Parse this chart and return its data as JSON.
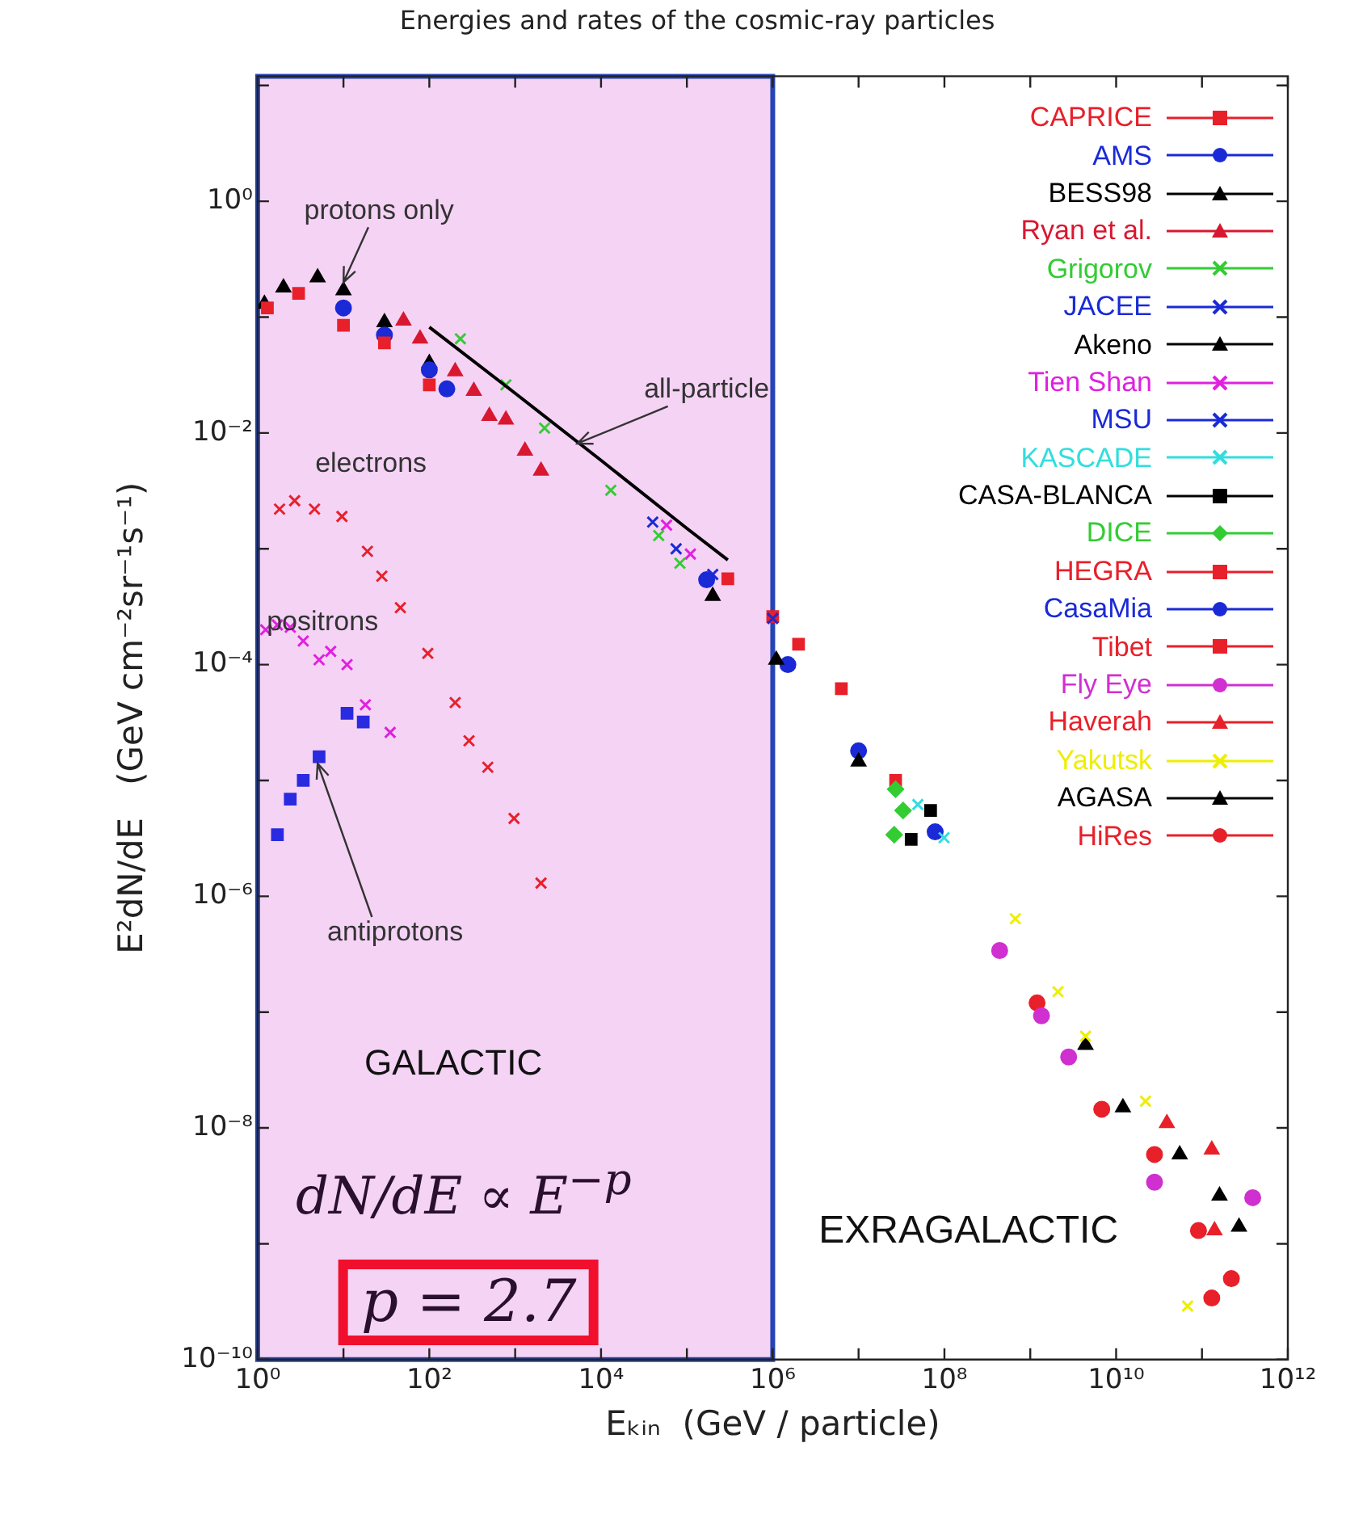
{
  "chart_data": {
    "type": "scatter",
    "title": "Energies and rates of the cosmic-ray particles",
    "xlabel": "Eₖᵢₙ  (GeV / particle)",
    "ylabel": "E²dN/dE   (GeV cm⁻²sr⁻¹s⁻¹)",
    "log": "xy",
    "grid": false,
    "legend": "top right",
    "xlim": [
      1,
      1000000000000
    ],
    "ylim": [
      1e-10,
      12
    ],
    "xticks": [
      {
        "value": 1,
        "label": "10⁰"
      },
      {
        "value": 10,
        "label": null
      },
      {
        "value": 100,
        "label": "10²"
      },
      {
        "value": 1000,
        "label": null
      },
      {
        "value": 10000,
        "label": "10⁴"
      },
      {
        "value": 100000,
        "label": null
      },
      {
        "value": 1000000,
        "label": "10⁶"
      },
      {
        "value": 10000000,
        "label": null
      },
      {
        "value": 100000000,
        "label": "10⁸"
      },
      {
        "value": 1000000000,
        "label": null
      },
      {
        "value": 10000000000,
        "label": "10¹⁰"
      },
      {
        "value": 100000000000,
        "label": null
      },
      {
        "value": 1000000000000,
        "label": "10¹²"
      }
    ],
    "yticks": [
      {
        "value": 1e-10,
        "label": "10⁻¹⁰"
      },
      {
        "value": 1e-09,
        "label": null
      },
      {
        "value": 1e-08,
        "label": "10⁻⁸"
      },
      {
        "value": 1e-07,
        "label": null
      },
      {
        "value": 1e-06,
        "label": "10⁻⁶"
      },
      {
        "value": 1e-05,
        "label": null
      },
      {
        "value": 0.0001,
        "label": "10⁻⁴"
      },
      {
        "value": 0.001,
        "label": null
      },
      {
        "value": 0.01,
        "label": "10⁻²"
      },
      {
        "value": 0.1,
        "label": null
      },
      {
        "value": 1,
        "label": "10⁰"
      },
      {
        "value": 10,
        "label": null
      }
    ],
    "bands": [
      {
        "axis": "x",
        "from": 1,
        "to": 1000000,
        "label": "GALACTIC",
        "color": "#f5d3f5"
      }
    ],
    "annotations": [
      {
        "text": "protons only",
        "x": 10,
        "y": 0.2
      },
      {
        "text": "all-particle",
        "x": 5300,
        "y": 0.0081
      },
      "electrons",
      "positrons",
      {
        "text": "antiprotons",
        "x": 5,
        "y": 1.4e-05
      },
      "EXRAGALACTIC",
      "dN/dE ∝ E$^{−p}$",
      "p = 2.7"
    ],
    "series": [
      {
        "type": "line",
        "color": "#000000",
        "marker": "none",
        "x": [
          100,
          1000,
          10000,
          100000,
          300000
        ],
        "values": [
          0.082,
          0.022,
          0.0058,
          0.0015,
          0.0008
        ]
      },
      {
        "name": "CAPRICE",
        "color": "#e8202a",
        "marker": "square",
        "x": [
          1.3,
          3,
          10,
          30,
          100
        ],
        "values": [
          0.12,
          0.16,
          0.085,
          0.06,
          0.026
        ]
      },
      {
        "name": "AMS",
        "color": "#1a2ad6",
        "marker": "circle",
        "x": [
          10,
          30,
          100,
          160
        ],
        "values": [
          0.12,
          0.07,
          0.035,
          0.024
        ]
      },
      {
        "name": "BESS98",
        "color": "#000000",
        "marker": "triangle",
        "x": [
          1.2,
          2,
          5,
          10,
          30,
          100
        ],
        "values": [
          0.13,
          0.18,
          0.22,
          0.17,
          0.09,
          0.04
        ]
      },
      {
        "name": "Ryan et al.",
        "color": "#d81830",
        "marker": "triangle",
        "x": [
          50,
          78,
          200,
          330,
          500,
          780,
          1300,
          2000
        ],
        "values": [
          0.093,
          0.065,
          0.034,
          0.023,
          0.014,
          0.013,
          0.007,
          0.0047
        ]
      },
      {
        "name": "Grigorov",
        "color": "#33cc33",
        "marker": "cross",
        "x": [
          230,
          780,
          2200,
          13000,
          47000,
          83000
        ],
        "values": [
          0.065,
          0.026,
          0.011,
          0.0032,
          0.0013,
          0.00075
        ]
      },
      {
        "name": "JACEE",
        "color": "#1a2ad6",
        "marker": "cross",
        "x": [
          40000,
          75000
        ],
        "values": [
          0.0017,
          0.001
        ]
      },
      {
        "name": "Akeno",
        "color": "#000000",
        "marker": "triangle",
        "x": [
          200000,
          1100000,
          10000000
        ],
        "values": [
          0.00039,
          0.00011,
          1.45e-05
        ]
      },
      {
        "name": "Tien Shan",
        "color": "#e020e0",
        "marker": "cross",
        "x": [
          58000,
          110000
        ],
        "values": [
          0.0016,
          0.0009
        ]
      },
      {
        "name": "MSU",
        "color": "#1a2ad6",
        "marker": "cross",
        "x": [
          200000,
          1000000
        ],
        "values": [
          0.0006,
          0.00025
        ]
      },
      {
        "name": "KASCADE",
        "color": "#33dddd",
        "marker": "cross",
        "x": [
          49000000,
          99000000
        ],
        "values": [
          6.2e-06,
          3.2e-06
        ]
      },
      {
        "name": "CASA-BLANCA",
        "color": "#000000",
        "marker": "square",
        "x": [
          41000000,
          69000000
        ],
        "values": [
          3.1e-06,
          5.5e-06
        ]
      },
      {
        "name": "DICE",
        "color": "#33cc33",
        "marker": "diamond",
        "x": [
          26000000,
          27000000,
          33000000
        ],
        "values": [
          3.4e-06,
          8.4e-06,
          5.5e-06
        ]
      },
      {
        "name": "HEGRA",
        "color": "#e8202a",
        "marker": "square",
        "x": [
          300000,
          1000000
        ],
        "values": [
          0.00055,
          0.00026
        ]
      },
      {
        "name": "CasaMia",
        "color": "#1a2ad6",
        "marker": "circle",
        "x": [
          170000,
          1500000,
          10000000,
          78000000
        ],
        "values": [
          0.00054,
          0.0001,
          1.8e-05,
          3.6e-06
        ]
      },
      {
        "name": "Tibet",
        "color": "#e8202a",
        "marker": "square",
        "x": [
          2000000,
          6300000,
          27000000
        ],
        "values": [
          0.00015,
          6.2e-05,
          1e-05
        ]
      },
      {
        "name": "Fly Eye",
        "color": "#d030d0",
        "marker": "circle",
        "x": [
          440000000,
          1350000000,
          2800000000,
          28000000000,
          390000000000
        ],
        "values": [
          3.4e-07,
          9.3e-08,
          4.1e-08,
          3.4e-09,
          2.5e-09
        ]
      },
      {
        "name": "Haverah",
        "color": "#e8202a",
        "marker": "triangle",
        "x": [
          39000000000,
          130000000000,
          140000000000
        ],
        "values": [
          1.1e-08,
          6.5e-09,
          1.3e-09
        ]
      },
      {
        "name": "Yakutsk",
        "color": "#eeee00",
        "marker": "cross",
        "x": [
          670000000,
          2100000000,
          4400000000,
          22000000000,
          68000000000
        ],
        "values": [
          6.4e-07,
          1.5e-07,
          6.2e-08,
          1.7e-08,
          2.9e-10
        ]
      },
      {
        "name": "AGASA",
        "color": "#000000",
        "marker": "triangle",
        "x": [
          4400000000,
          12000000000,
          55000000000,
          160000000000,
          270000000000
        ],
        "values": [
          5.2e-08,
          1.5e-08,
          5.9e-09,
          2.6e-09,
          1.4e-09
        ]
      },
      {
        "name": "HiRes",
        "color": "#e8202a",
        "marker": "circle",
        "x": [
          1200000000,
          6800000000,
          28000000000,
          91000000000,
          130000000000,
          220000000000
        ],
        "values": [
          1.2e-07,
          1.45e-08,
          5.9e-09,
          1.3e-09,
          3.4e-10,
          5e-10
        ]
      },
      {
        "type": "scatter",
        "color": "#e8202a",
        "marker": "cross",
        "x": [
          1.8,
          2.7,
          4.6,
          9.6,
          19,
          28,
          46,
          96,
          200,
          290,
          480,
          970,
          2000
        ],
        "values": [
          0.0022,
          0.0026,
          0.0022,
          0.0019,
          0.00095,
          0.00058,
          0.00031,
          0.000125,
          4.7e-05,
          2.2e-05,
          1.3e-05,
          4.7e-06,
          1.3e-06
        ]
      },
      {
        "type": "scatter",
        "color": "#e020e0",
        "marker": "cross",
        "x": [
          1.24,
          1.7,
          2.4,
          3.4,
          5.2,
          7.1,
          11,
          18,
          35
        ],
        "values": [
          0.0002,
          0.00022,
          0.00021,
          0.00016,
          0.00011,
          0.00013,
          0.0001,
          4.5e-05,
          2.6e-05
        ]
      },
      {
        "type": "scatter",
        "color": "#2a2ae0",
        "marker": "square",
        "x": [
          1.7,
          2.4,
          3.4,
          5.2,
          11,
          17
        ],
        "values": [
          3.4e-06,
          6.9e-06,
          1e-05,
          1.6e-05,
          3.8e-05,
          3.2e-05
        ]
      }
    ]
  }
}
